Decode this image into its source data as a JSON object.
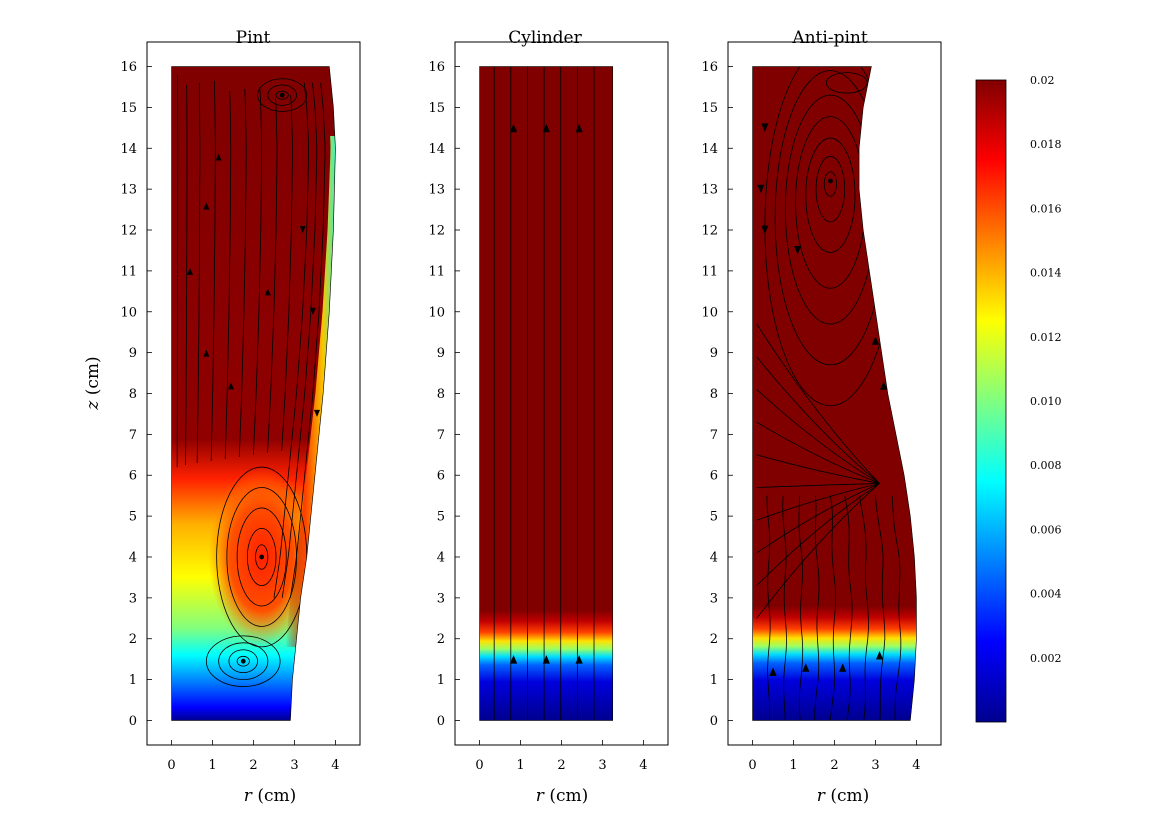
{
  "chart_data": [
    {
      "type": "heatmap",
      "title": "Pint",
      "xlabel_italic": "r",
      "xlabel_unit": "(cm)",
      "ylabel_italic": "z",
      "ylabel_unit": "(cm)",
      "xlim": [
        -0.6,
        4.6
      ],
      "ylim": [
        -0.6,
        16.6
      ],
      "xticks": [
        "0",
        "1",
        "2",
        "3",
        "4"
      ],
      "yticks": [
        "0",
        "1",
        "2",
        "3",
        "4",
        "5",
        "6",
        "7",
        "8",
        "9",
        "10",
        "11",
        "12",
        "13",
        "14",
        "15",
        "16"
      ],
      "profile_r": [
        [
          0,
          2.9
        ],
        [
          1,
          2.95
        ],
        [
          2,
          3.05
        ],
        [
          3,
          3.15
        ],
        [
          4,
          3.3
        ],
        [
          6,
          3.5
        ],
        [
          8,
          3.7
        ],
        [
          10,
          3.85
        ],
        [
          12,
          3.95
        ],
        [
          14,
          4.0
        ],
        [
          15,
          3.95
        ],
        [
          16,
          3.85
        ]
      ],
      "vortices": [
        [
          1.75,
          1.45
        ],
        [
          2.2,
          4.0
        ],
        [
          2.7,
          15.3
        ]
      ],
      "colormap": "jet"
    },
    {
      "type": "heatmap",
      "title": "Cylinder",
      "xlabel_italic": "r",
      "xlabel_unit": "(cm)",
      "xlim": [
        -0.6,
        4.6
      ],
      "ylim": [
        -0.6,
        16.6
      ],
      "xticks": [
        "0",
        "1",
        "2",
        "3",
        "4"
      ],
      "yticks": [
        "0",
        "1",
        "2",
        "3",
        "4",
        "5",
        "6",
        "7",
        "8",
        "9",
        "10",
        "11",
        "12",
        "13",
        "14",
        "15",
        "16"
      ],
      "radius": 3.25,
      "interface_z": [
        1.0,
        2.1
      ],
      "colormap": "jet"
    },
    {
      "type": "heatmap",
      "title": "Anti-pint",
      "xlabel_italic": "r",
      "xlabel_unit": "(cm)",
      "xlim": [
        -0.6,
        4.6
      ],
      "ylim": [
        -0.6,
        16.6
      ],
      "xticks": [
        "0",
        "1",
        "2",
        "3",
        "4"
      ],
      "yticks": [
        "0",
        "1",
        "2",
        "3",
        "4",
        "5",
        "6",
        "7",
        "8",
        "9",
        "10",
        "11",
        "12",
        "13",
        "14",
        "15",
        "16"
      ],
      "profile_r": [
        [
          0,
          3.85
        ],
        [
          1,
          3.95
        ],
        [
          2,
          4.0
        ],
        [
          3,
          4.0
        ],
        [
          4,
          3.95
        ],
        [
          5,
          3.85
        ],
        [
          6,
          3.7
        ],
        [
          7,
          3.5
        ],
        [
          8,
          3.3
        ],
        [
          9,
          3.15
        ],
        [
          10,
          3.0
        ],
        [
          11,
          2.85
        ],
        [
          12,
          2.7
        ],
        [
          13,
          2.6
        ],
        [
          14,
          2.6
        ],
        [
          15,
          2.7
        ],
        [
          16,
          2.9
        ]
      ],
      "interface_z": [
        1.0,
        2.2
      ],
      "vortices": [
        [
          1.9,
          13.2
        ]
      ],
      "colormap": "jet"
    }
  ],
  "colorbar": {
    "ticks": [
      "0.02",
      "0.018",
      "0.016",
      "0.014",
      "0.012",
      "0.010",
      "0.008",
      "0.006",
      "0.004",
      "0.002"
    ],
    "tick_values": [
      0.02,
      0.018,
      0.016,
      0.014,
      0.012,
      0.01,
      0.008,
      0.006,
      0.004,
      0.002
    ],
    "range": [
      0.0,
      0.02
    ],
    "stops": [
      "#00008f",
      "#0000ff",
      "#0080ff",
      "#00ffff",
      "#80ff80",
      "#ffff00",
      "#ff8000",
      "#ff0000",
      "#800000"
    ]
  },
  "colors": {
    "high": "#800000",
    "streamline": "#000000"
  }
}
